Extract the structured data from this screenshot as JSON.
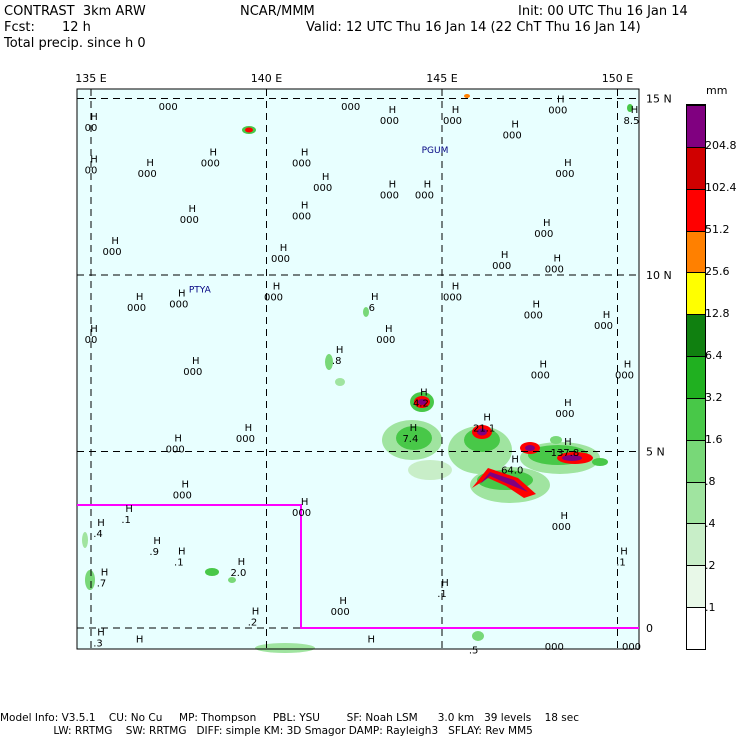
{
  "header": {
    "model": "CONTRAST  3km ARW",
    "center": "NCAR/MMM",
    "init": "Init: 00 UTC Thu 16 Jan 14",
    "fcst_label": "Fcst:",
    "fcst_value": "12 h",
    "valid": "Valid: 12 UTC Thu 16 Jan 14 (22 ChT Thu 16 Jan 14)",
    "field": "Total precip. since h 0"
  },
  "lon_labels": [
    {
      "text": "135 E",
      "lon": 135
    },
    {
      "text": "140 E",
      "lon": 140
    },
    {
      "text": "145 E",
      "lon": 145
    },
    {
      "text": "150 E",
      "lon": 150
    }
  ],
  "lat_labels": [
    {
      "text": "15 N",
      "lat": 15
    },
    {
      "text": "10 N",
      "lat": 10
    },
    {
      "text": "5 N",
      "lat": 5
    },
    {
      "text": "0",
      "lat": 0
    }
  ],
  "colorbar": {
    "unit": "mm",
    "levels": [
      ".1",
      ".2",
      ".4",
      ".8",
      "1.6",
      "3.2",
      "6.4",
      "12.8",
      "25.6",
      "51.2",
      "102.4",
      "204.8"
    ],
    "colors": [
      "#ffffff",
      "#e8f8e8",
      "#c8eec8",
      "#a0e4a0",
      "#78d878",
      "#48c848",
      "#20b020",
      "#108010",
      "#ffff00",
      "#ff8000",
      "#ff0000",
      "#d00000",
      "#800080"
    ]
  },
  "stations": [
    {
      "lon": 137.2,
      "lat": 14.9,
      "h": "",
      "v": "000"
    },
    {
      "lon": 142.4,
      "lat": 14.9,
      "h": "",
      "v": "000"
    },
    {
      "lon": 148.3,
      "lat": 14.8,
      "h": "H",
      "v": "000"
    },
    {
      "lon": 150.4,
      "lat": 14.5,
      "h": "H",
      "v": "8.5"
    },
    {
      "lon": 143.5,
      "lat": 14.5,
      "h": "H",
      "v": "000"
    },
    {
      "lon": 145.3,
      "lat": 14.5,
      "h": "H",
      "v": "000"
    },
    {
      "lon": 135.0,
      "lat": 14.3,
      "h": "H",
      "v": "00"
    },
    {
      "lon": 147.0,
      "lat": 14.1,
      "h": "H",
      "v": "000"
    },
    {
      "lon": 135.0,
      "lat": 13.1,
      "h": "H",
      "v": "00"
    },
    {
      "lon": 138.4,
      "lat": 13.3,
      "h": "H",
      "v": "000"
    },
    {
      "lon": 141.0,
      "lat": 13.3,
      "h": "H",
      "v": "000"
    },
    {
      "lon": 136.6,
      "lat": 13.0,
      "h": "H",
      "v": "000"
    },
    {
      "lon": 148.5,
      "lat": 13.0,
      "h": "H",
      "v": "000"
    },
    {
      "lon": 141.6,
      "lat": 12.6,
      "h": "H",
      "v": "000"
    },
    {
      "lon": 143.5,
      "lat": 12.4,
      "h": "H",
      "v": "000"
    },
    {
      "lon": 144.5,
      "lat": 12.4,
      "h": "H",
      "v": "000"
    },
    {
      "lon": 137.8,
      "lat": 11.7,
      "h": "H",
      "v": "000"
    },
    {
      "lon": 141.0,
      "lat": 11.8,
      "h": "H",
      "v": "000"
    },
    {
      "lon": 147.9,
      "lat": 11.3,
      "h": "H",
      "v": "000"
    },
    {
      "lon": 135.6,
      "lat": 10.8,
      "h": "H",
      "v": "000"
    },
    {
      "lon": 140.4,
      "lat": 10.6,
      "h": "H",
      "v": "000"
    },
    {
      "lon": 146.7,
      "lat": 10.4,
      "h": "H",
      "v": "000"
    },
    {
      "lon": 148.2,
      "lat": 10.3,
      "h": "H",
      "v": "000"
    },
    {
      "lon": 140.2,
      "lat": 9.5,
      "h": "H",
      "v": "000"
    },
    {
      "lon": 145.3,
      "lat": 9.5,
      "h": "H",
      "v": "000"
    },
    {
      "lon": 136.3,
      "lat": 9.2,
      "h": "H",
      "v": "000"
    },
    {
      "lon": 137.5,
      "lat": 9.3,
      "h": "H",
      "v": "000"
    },
    {
      "lon": 143.0,
      "lat": 9.2,
      "h": "H",
      "v": "6"
    },
    {
      "lon": 147.6,
      "lat": 9.0,
      "h": "H",
      "v": "000"
    },
    {
      "lon": 149.6,
      "lat": 8.7,
      "h": "H",
      "v": "000"
    },
    {
      "lon": 135.0,
      "lat": 8.3,
      "h": "H",
      "v": "00"
    },
    {
      "lon": 143.4,
      "lat": 8.3,
      "h": "H",
      "v": "000"
    },
    {
      "lon": 142.0,
      "lat": 7.7,
      "h": "H",
      "v": ".8"
    },
    {
      "lon": 137.9,
      "lat": 7.4,
      "h": "H",
      "v": "000"
    },
    {
      "lon": 147.8,
      "lat": 7.3,
      "h": "H",
      "v": "000"
    },
    {
      "lon": 150.2,
      "lat": 7.3,
      "h": "H",
      "v": "000"
    },
    {
      "lon": 144.4,
      "lat": 6.5,
      "h": "H",
      "v": "4.2"
    },
    {
      "lon": 148.5,
      "lat": 6.2,
      "h": "H",
      "v": "000"
    },
    {
      "lon": 146.2,
      "lat": 5.8,
      "h": "H",
      "v": "21.1"
    },
    {
      "lon": 144.1,
      "lat": 5.5,
      "h": "H",
      "v": "7.4"
    },
    {
      "lon": 139.4,
      "lat": 5.5,
      "h": "H",
      "v": "000"
    },
    {
      "lon": 137.4,
      "lat": 5.2,
      "h": "H",
      "v": "000"
    },
    {
      "lon": 148.5,
      "lat": 5.1,
      "h": "H",
      "v": "137.8"
    },
    {
      "lon": 147.0,
      "lat": 4.6,
      "h": "H",
      "v": "64.0"
    },
    {
      "lon": 137.6,
      "lat": 3.9,
      "h": "H",
      "v": "000"
    },
    {
      "lon": 141.0,
      "lat": 3.4,
      "h": "H",
      "v": "000"
    },
    {
      "lon": 136.0,
      "lat": 3.2,
      "h": "H",
      "v": ".1"
    },
    {
      "lon": 148.4,
      "lat": 3.0,
      "h": "H",
      "v": "000"
    },
    {
      "lon": 135.2,
      "lat": 2.8,
      "h": "H",
      "v": ".4"
    },
    {
      "lon": 136.8,
      "lat": 2.3,
      "h": "H",
      "v": ".9"
    },
    {
      "lon": 137.5,
      "lat": 2.0,
      "h": "H",
      "v": ".1"
    },
    {
      "lon": 150.1,
      "lat": 2.0,
      "h": "H",
      "v": ".1"
    },
    {
      "lon": 139.2,
      "lat": 1.7,
      "h": "H",
      "v": "2.0"
    },
    {
      "lon": 135.3,
      "lat": 1.4,
      "h": "H",
      "v": ".7"
    },
    {
      "lon": 145.0,
      "lat": 1.1,
      "h": "H",
      "v": ".1"
    },
    {
      "lon": 142.1,
      "lat": 0.6,
      "h": "H",
      "v": "000"
    },
    {
      "lon": 139.6,
      "lat": 0.3,
      "h": "H",
      "v": ".2"
    },
    {
      "lon": 135.2,
      "lat": -0.3,
      "h": "H",
      "v": ".3"
    },
    {
      "lon": 136.3,
      "lat": -0.5,
      "h": "H",
      "v": ""
    },
    {
      "lon": 142.9,
      "lat": -0.5,
      "h": "H",
      "v": ""
    },
    {
      "lon": 145.9,
      "lat": -0.5,
      "h": "",
      "v": ".5"
    },
    {
      "lon": 148.2,
      "lat": -0.4,
      "h": "",
      "v": "000"
    },
    {
      "lon": 150.4,
      "lat": -0.4,
      "h": "",
      "v": "000"
    }
  ],
  "place_labels": [
    {
      "text": "PGUM",
      "lon": 144.8,
      "lat": 13.45
    },
    {
      "text": "PTYA",
      "lon": 138.1,
      "lat": 9.5
    }
  ],
  "footer": {
    "line1": "Model Info: V3.5.1    CU: No Cu     MP: Thompson     PBL: YSU        SF: Noah LSM      3.0 km   39 levels    18 sec",
    "line2": "                LW: RRTMG    SW: RRTMG   DIFF: simple KM: 3D Smagor DAMP: Rayleigh3   SFLAY: Rev MM5"
  }
}
